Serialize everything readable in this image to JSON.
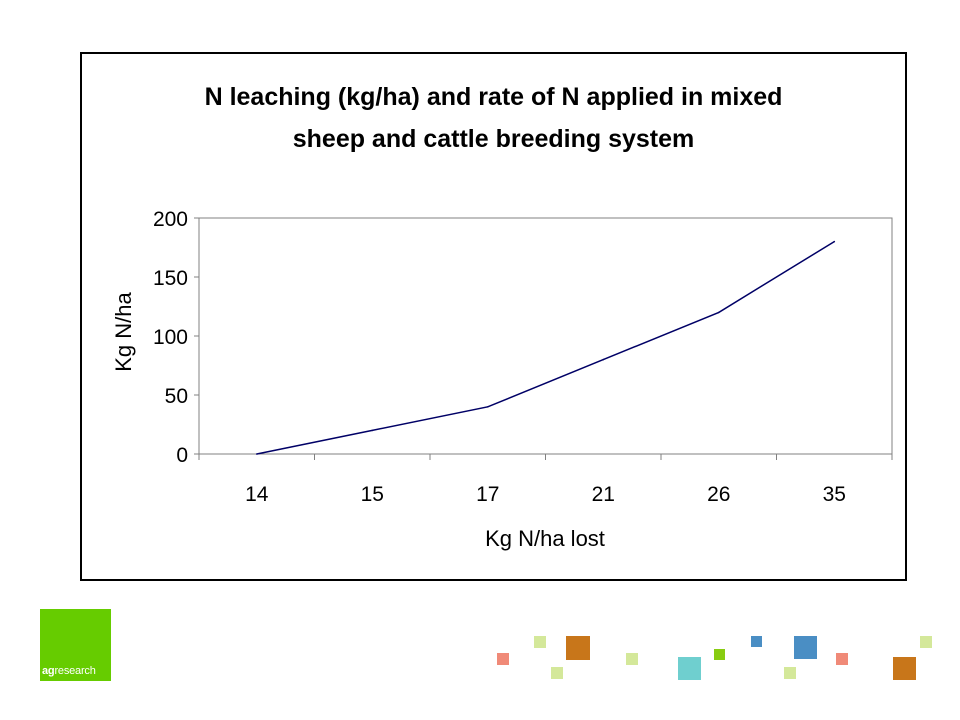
{
  "chart_data": {
    "type": "line",
    "title": "N leaching (kg/ha) and rate of N applied in mixed sheep and cattle breeding system",
    "title_lines": [
      "N leaching (kg/ha) and rate of N applied in mixed",
      "sheep and cattle breeding system"
    ],
    "xlabel": "Kg N/ha lost",
    "ylabel": "Kg N/ha",
    "categories": [
      "14",
      "15",
      "17",
      "21",
      "26",
      "35"
    ],
    "series": [
      {
        "values": [
          0,
          20,
          40,
          80,
          120,
          180
        ],
        "color": "#000066"
      }
    ],
    "ylim": [
      0,
      200
    ],
    "yticks": [
      0,
      50,
      100,
      150,
      200
    ],
    "grid": false,
    "legend": "none"
  },
  "logo": {
    "bold": "ag",
    "rest": "research",
    "color": "#66cc00"
  },
  "decor_colors": {
    "lime": "#d4e89a",
    "orange": "#c8761a",
    "salmon": "#f08a78",
    "teal": "#6fcfcf",
    "green": "#88cc11",
    "blue": "#4a8ec4"
  }
}
